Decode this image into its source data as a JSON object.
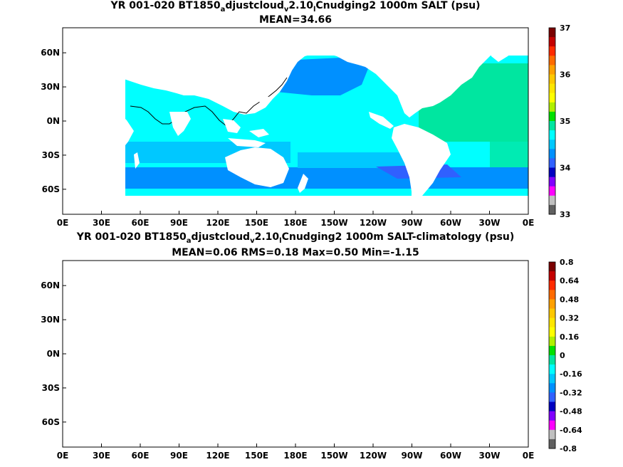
{
  "panels": [
    {
      "title_parts": [
        "YR 001-020 BT1850",
        "a",
        "djustcloud",
        "v",
        "2.10",
        "l",
        "Cnudging2 1000m SALT (psu)"
      ],
      "stats": "MEAN=34.66",
      "variable": "SALT",
      "units": "psu",
      "colorbar": {
        "ticks": [
          "37",
          "36",
          "35",
          "34",
          "33"
        ],
        "colors": [
          "#7a0000",
          "#c40000",
          "#ff2a00",
          "#ff6a00",
          "#ffa000",
          "#ffc800",
          "#ffe600",
          "#ffff00",
          "#b0f000",
          "#00e000",
          "#00e6a0",
          "#00ffff",
          "#00c8ff",
          "#0090ff",
          "#3060ff",
          "#0000c0",
          "#8000ff",
          "#ff00ff",
          "#c0c0c0",
          "#606060"
        ]
      }
    },
    {
      "title_parts": [
        "YR 001-020 BT1850",
        "a",
        "djustcloud",
        "v",
        "2.10",
        "l",
        "Cnudging2 1000m SALT-climatology (psu)"
      ],
      "stats": "MEAN=0.06   RMS=0.18   Max=0.50   Min=-1.15",
      "variable": "SALT-climatology",
      "units": "psu",
      "colorbar": {
        "ticks": [
          "0.8",
          "0.64",
          "0.48",
          "0.32",
          "0.16",
          "0",
          "-0.16",
          "-0.32",
          "-0.48",
          "-0.64",
          "-0.8"
        ],
        "colors": [
          "#7a0000",
          "#c40000",
          "#ff2a00",
          "#ff6a00",
          "#ffa000",
          "#ffc800",
          "#ffe600",
          "#ffff00",
          "#b0f000",
          "#00e000",
          "#00e6a0",
          "#00ffff",
          "#00c8ff",
          "#0090ff",
          "#3060ff",
          "#0000c0",
          "#8000ff",
          "#ff00ff",
          "#c0c0c0",
          "#606060"
        ]
      }
    }
  ],
  "axes": {
    "x_ticks": [
      "0E",
      "30E",
      "60E",
      "90E",
      "120E",
      "150E",
      "180E",
      "150W",
      "120W",
      "90W",
      "60W",
      "30W",
      "0E"
    ],
    "y_ticks": [
      "60N",
      "30N",
      "0N",
      "30S",
      "60S"
    ]
  }
}
